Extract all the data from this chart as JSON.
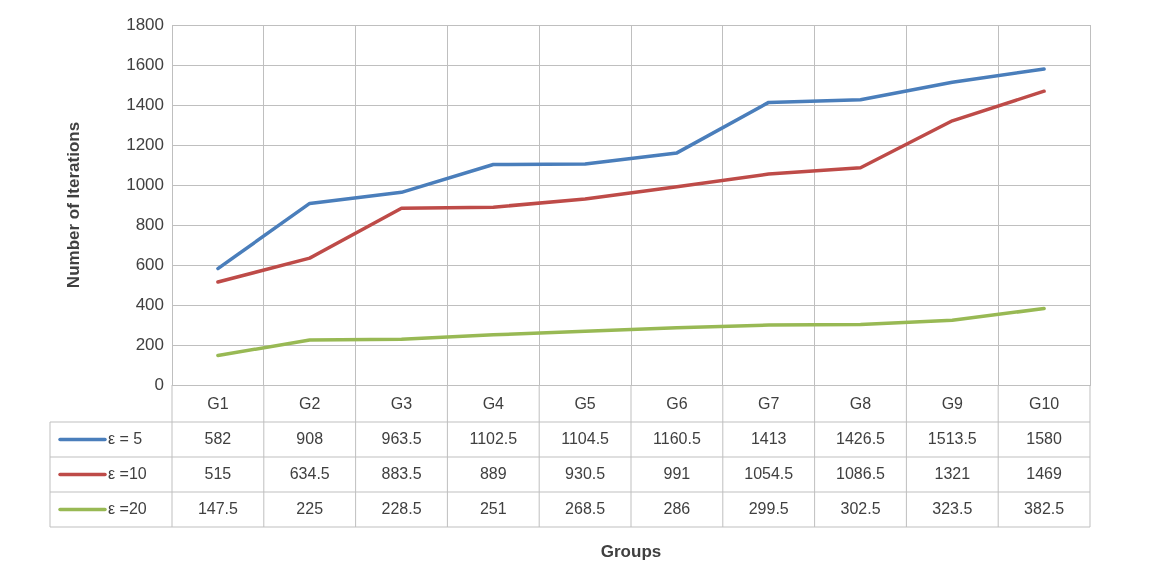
{
  "chart_data": {
    "type": "line",
    "annotations": [
      "Groups"
    ],
    "ylabel": "Number of Iterations",
    "categories": [
      "G1",
      "G2",
      "G3",
      "G4",
      "G5",
      "G6",
      "G7",
      "G8",
      "G9",
      "G10"
    ],
    "series": [
      {
        "name": "ε = 5",
        "color": "#4a7ebb",
        "values": [
          582,
          908,
          963.5,
          1102.5,
          1104.5,
          1160.5,
          1413,
          1426.5,
          1513.5,
          1580
        ]
      },
      {
        "name": "ε =10",
        "color": "#be4b48",
        "values": [
          515,
          634.5,
          883.5,
          889,
          930.5,
          991,
          1054.5,
          1086.5,
          1321,
          1469
        ]
      },
      {
        "name": "ε =20",
        "color": "#98b954",
        "values": [
          147.5,
          225,
          228.5,
          251,
          268.5,
          286,
          299.5,
          302.5,
          323.5,
          382.5
        ]
      }
    ],
    "ylim": [
      0,
      1800
    ],
    "yticks": [
      0,
      200,
      400,
      600,
      800,
      1000,
      1200,
      1400,
      1600,
      1800
    ],
    "grid": true,
    "legend": "bottom",
    "data_labels": true,
    "marker": "none",
    "line_style": "solid"
  }
}
